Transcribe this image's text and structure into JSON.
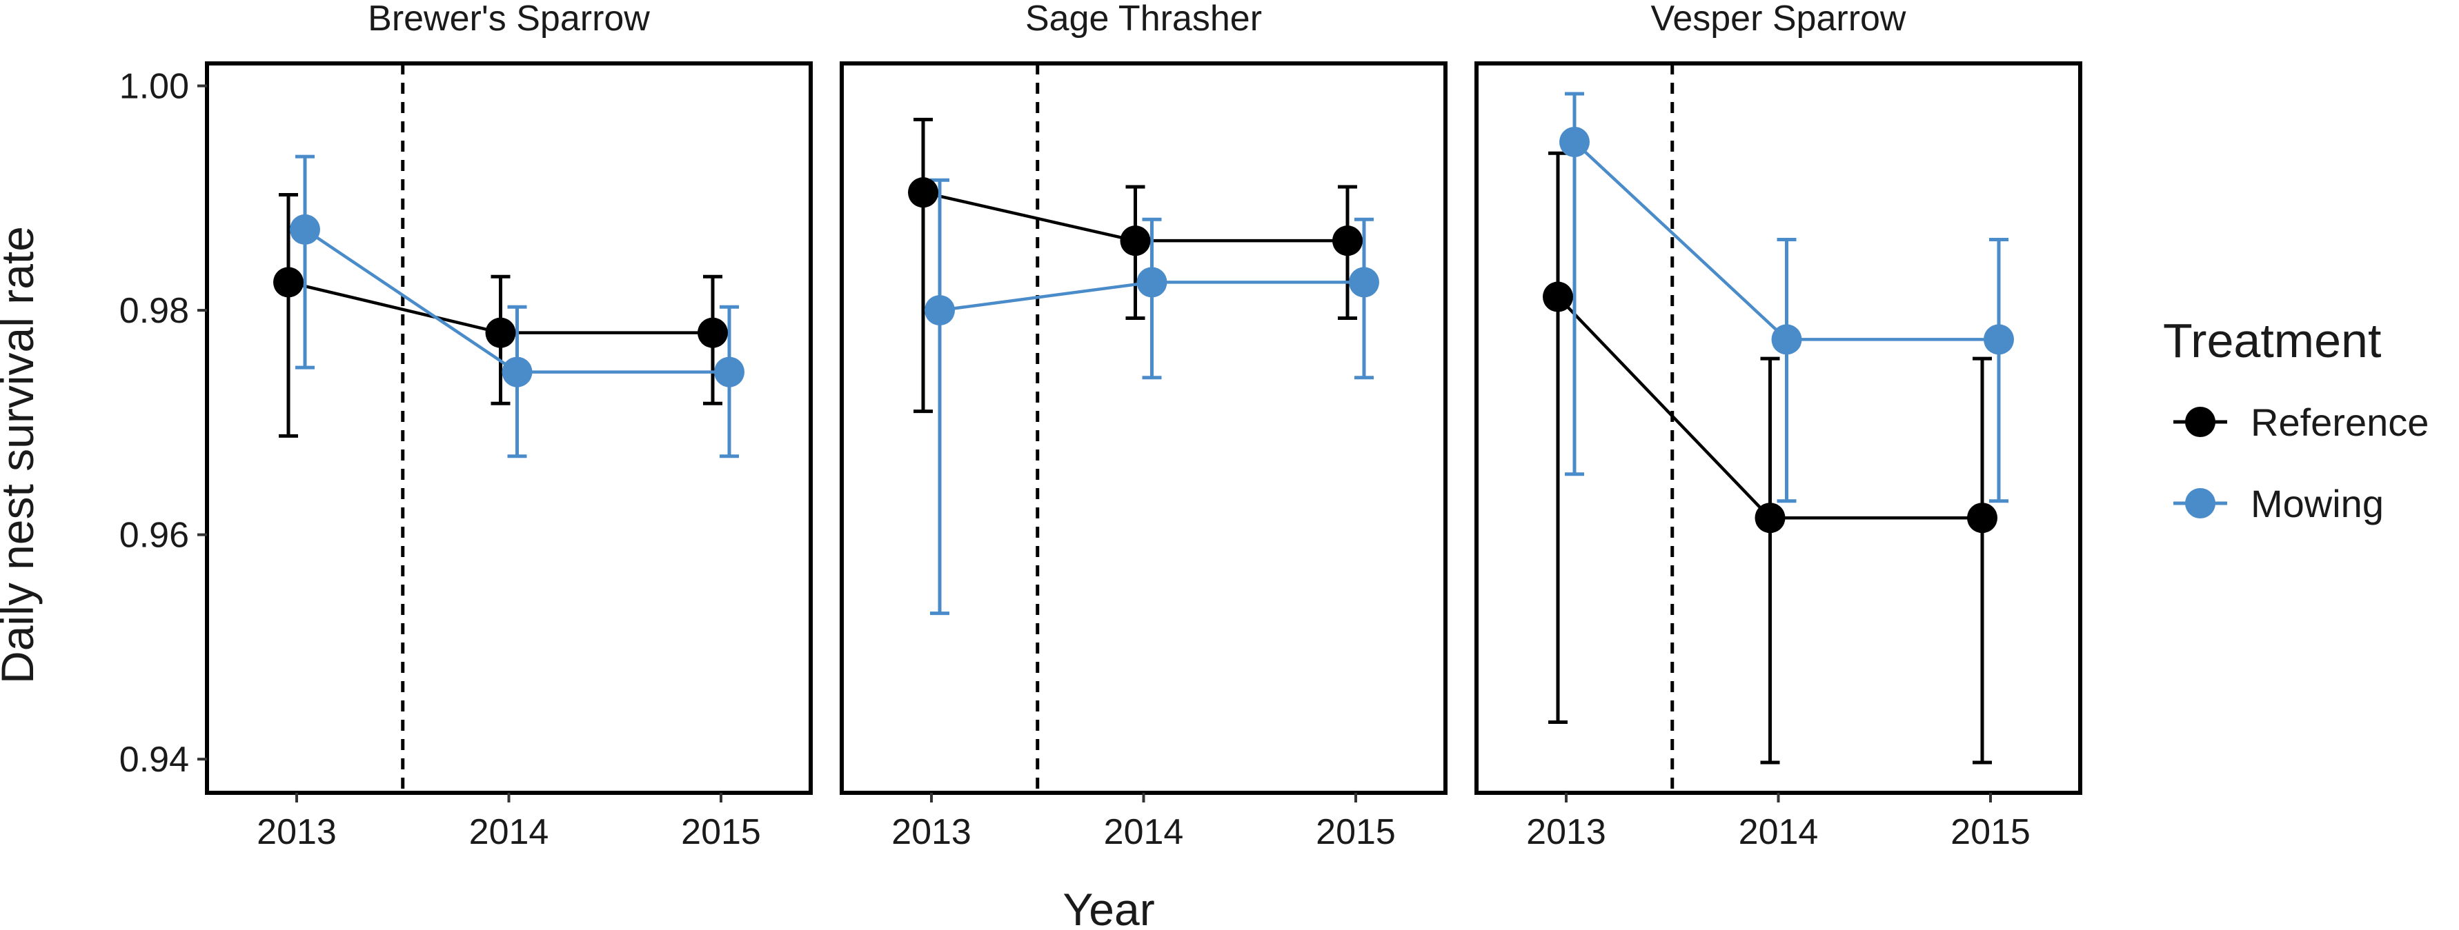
{
  "chart_data": {
    "type": "line",
    "xlabel": "Year",
    "ylabel": "Daily nest survival rate",
    "ylim": [
      0.937,
      1.002
    ],
    "yticks": [
      "0.94",
      "0.96",
      "0.98",
      "1.00"
    ],
    "x": [
      "2013",
      "2014",
      "2015"
    ],
    "reference_line_between": [
      "2013",
      "2014"
    ],
    "grid": false,
    "legend": {
      "title": "Treatment",
      "placement": "right",
      "entries": [
        {
          "name": "Reference",
          "color": "#000000"
        },
        {
          "name": "Mowing",
          "color": "#4a8cca"
        }
      ]
    },
    "panels": [
      {
        "title": "Brewer's Sparrow",
        "series": [
          {
            "name": "Reference",
            "color": "#000000",
            "values": [
              0.9825,
              0.978,
              0.978
            ],
            "lower": [
              0.9688,
              0.9717,
              0.9717
            ],
            "upper": [
              0.9903,
              0.983,
              0.983
            ]
          },
          {
            "name": "Mowing",
            "color": "#4a8cca",
            "values": [
              0.9872,
              0.9745,
              0.9745
            ],
            "lower": [
              0.9749,
              0.967,
              0.967
            ],
            "upper": [
              0.9937,
              0.9803,
              0.9803
            ]
          }
        ]
      },
      {
        "title": "Sage Thrasher",
        "series": [
          {
            "name": "Reference",
            "color": "#000000",
            "values": [
              0.9905,
              0.9862,
              0.9862
            ],
            "lower": [
              0.971,
              0.9793,
              0.9793
            ],
            "upper": [
              0.997,
              0.991,
              0.991
            ]
          },
          {
            "name": "Mowing",
            "color": "#4a8cca",
            "values": [
              0.98,
              0.9825,
              0.9825
            ],
            "lower": [
              0.953,
              0.974,
              0.974
            ],
            "upper": [
              0.9916,
              0.9881,
              0.9881
            ]
          }
        ]
      },
      {
        "title": "Vesper Sparrow",
        "series": [
          {
            "name": "Reference",
            "color": "#000000",
            "values": [
              0.9812,
              0.9615,
              0.9615
            ],
            "lower": [
              0.9433,
              0.9397,
              0.9397
            ],
            "upper": [
              0.994,
              0.9757,
              0.9757
            ]
          },
          {
            "name": "Mowing",
            "color": "#4a8cca",
            "values": [
              0.995,
              0.9774,
              0.9774
            ],
            "lower": [
              0.9654,
              0.963,
              0.963
            ],
            "upper": [
              0.9993,
              0.9863,
              0.9863
            ]
          }
        ]
      }
    ]
  }
}
